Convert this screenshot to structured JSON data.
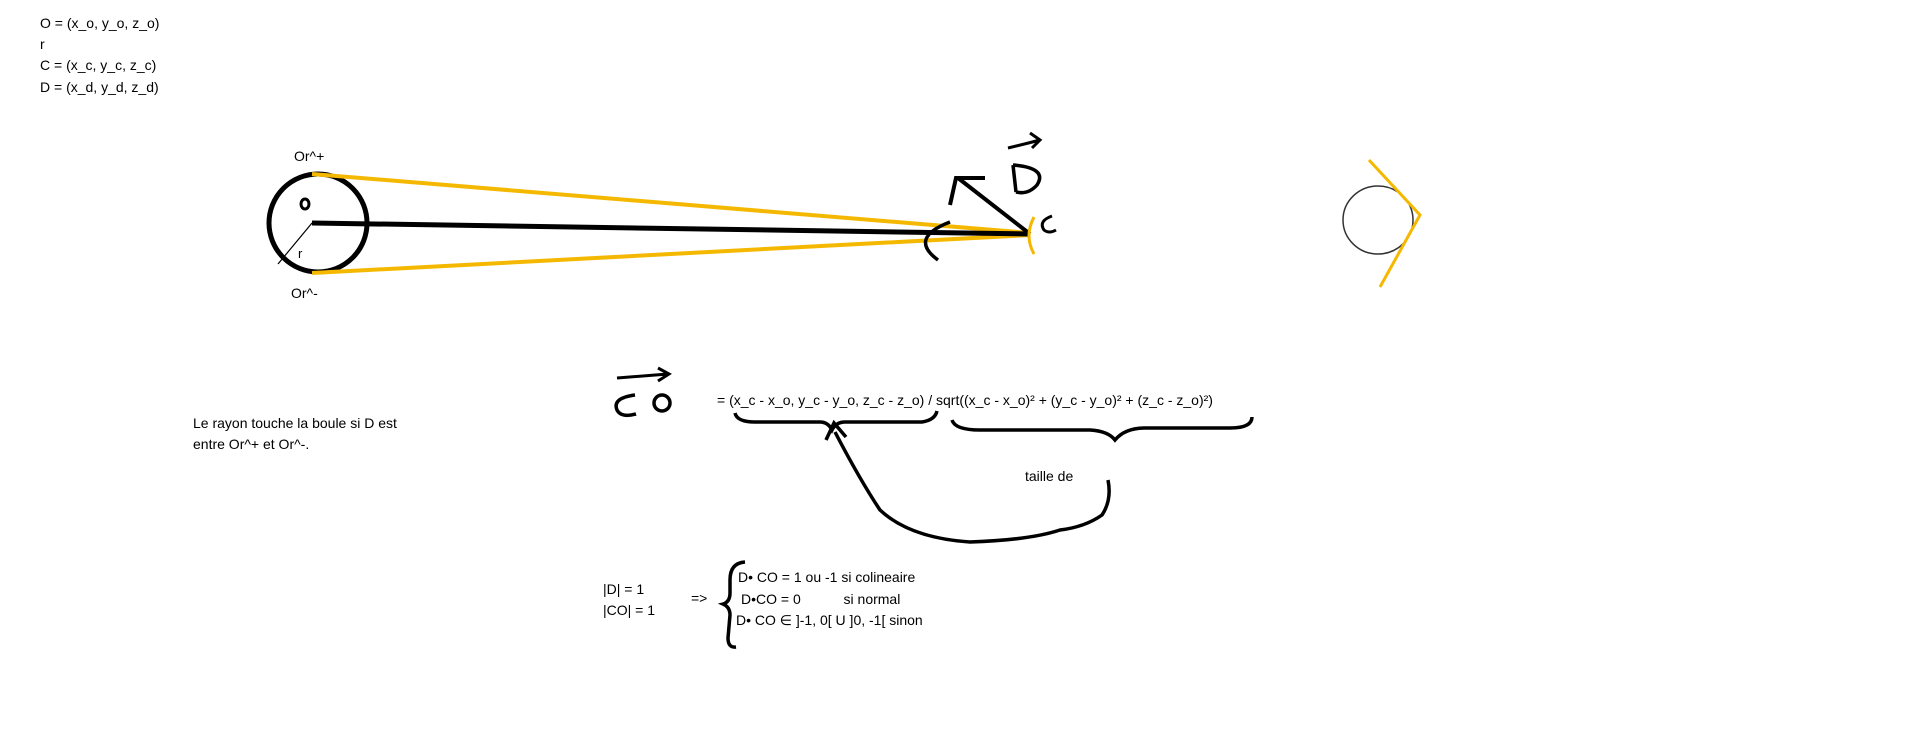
{
  "definitions": [
    "O = (x_o, y_o, z_o)",
    "r",
    "C =  (x_c, y_c, z_c)",
    "D =  (x_d, y_d, z_d)"
  ],
  "labels": {
    "or_plus": "Or^+",
    "or_minus": "Or^-",
    "center_o": "o",
    "radius": "r",
    "camera_c": "c",
    "vector_d": "D",
    "vector_co": "CO"
  },
  "note": [
    "Le rayon touche la boule si D est",
    "entre Or^+ et Or^-."
  ],
  "formula": "= (x_c - x_o, y_c - y_o, z_c - z_o) / sqrt((x_c - x_o)² + (y_c - y_o)² + (z_c - z_o)²)",
  "size_label": "taille de",
  "norms": [
    "|D| = 1",
    "|CO| = 1"
  ],
  "implies": "=>",
  "cases": [
    "D• CO = 1 ou -1 si colineaire",
    "D•CO = 0           si normal",
    "D• CO ∈ ]-1, 0[ U ]0, -1[ sinon"
  ],
  "colors": {
    "ink": "#000000",
    "tangent": "#f5b800",
    "sphere_outline": "#333333"
  }
}
